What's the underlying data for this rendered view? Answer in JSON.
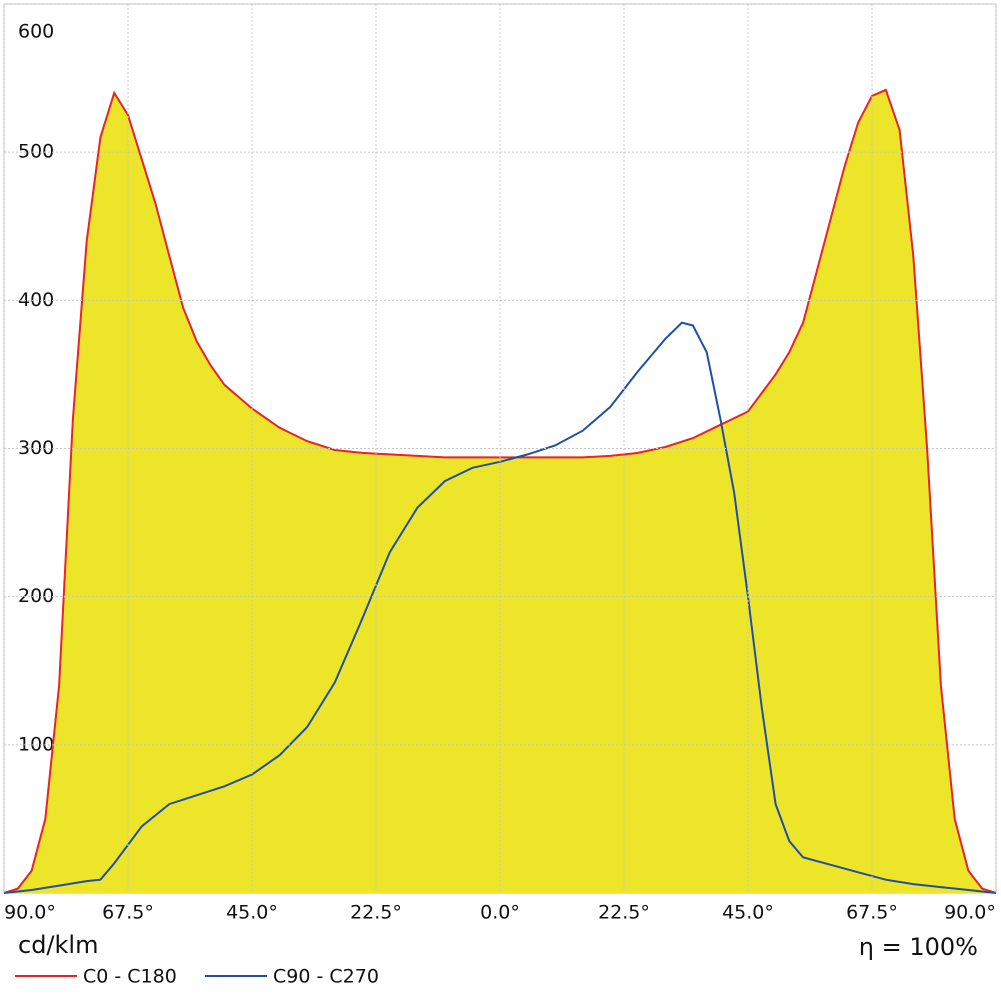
{
  "chart_data": {
    "type": "line",
    "y_unit": "cd/klm",
    "efficiency": "η = 100%",
    "xlim": [
      -90,
      90
    ],
    "ylim": [
      0,
      600
    ],
    "xticks": [
      {
        "value": -90,
        "label": "90.0°"
      },
      {
        "value": -67.5,
        "label": "67.5°"
      },
      {
        "value": -45,
        "label": "45.0°"
      },
      {
        "value": -22.5,
        "label": "22.5°"
      },
      {
        "value": 0,
        "label": "0.0°"
      },
      {
        "value": 22.5,
        "label": "22.5°"
      },
      {
        "value": 45,
        "label": "45.0°"
      },
      {
        "value": 67.5,
        "label": "67.5°"
      },
      {
        "value": 90,
        "label": "90.0°"
      }
    ],
    "yticks": [
      100,
      200,
      300,
      400,
      500,
      600
    ],
    "grid": true,
    "series": [
      {
        "name": "C0 - C180",
        "color": "#e8232a",
        "fill": "#ece52a",
        "x": [
          -90,
          -87.5,
          -85,
          -82.5,
          -80,
          -77.5,
          -75,
          -72.5,
          -70,
          -67.5,
          -65,
          -62.5,
          -60,
          -57.5,
          -55,
          -52.5,
          -50,
          -45,
          -40,
          -35,
          -30,
          -25,
          -20,
          -15,
          -10,
          -5,
          0,
          5,
          10,
          15,
          20,
          25,
          30,
          35,
          40,
          45,
          50,
          52.5,
          55,
          57.5,
          60,
          62.5,
          65,
          67.5,
          70,
          72.5,
          75,
          77.5,
          80,
          82.5,
          85,
          87.5,
          90
        ],
        "values": [
          0,
          3,
          15,
          50,
          140,
          320,
          440,
          510,
          540,
          525,
          495,
          465,
          430,
          395,
          372,
          356,
          343,
          327,
          314,
          305,
          299,
          297,
          296,
          295,
          294,
          294,
          294,
          294,
          294,
          294,
          295,
          297,
          301,
          307,
          316,
          325,
          350,
          365,
          385,
          420,
          455,
          490,
          520,
          538,
          542,
          515,
          430,
          300,
          140,
          50,
          15,
          3,
          0
        ]
      },
      {
        "name": "C90 - C270",
        "color": "#1f4fa8",
        "x": [
          -90,
          -85,
          -80,
          -75,
          -72.5,
          -70,
          -65,
          -60,
          -55,
          -50,
          -45,
          -40,
          -35,
          -30,
          -25,
          -20,
          -15,
          -10,
          -5,
          0,
          5,
          10,
          15,
          20,
          25,
          30,
          33,
          35,
          37.5,
          40,
          42.5,
          45,
          47.5,
          50,
          52.5,
          55,
          60,
          65,
          70,
          75,
          80,
          85,
          90
        ],
        "values": [
          0,
          2,
          5,
          8,
          9,
          20,
          45,
          60,
          66,
          72,
          80,
          93,
          112,
          142,
          185,
          230,
          260,
          278,
          287,
          291,
          296,
          302,
          312,
          328,
          352,
          374,
          385,
          383,
          365,
          320,
          270,
          200,
          125,
          60,
          35,
          24,
          19,
          14,
          9,
          6,
          4,
          2,
          0
        ]
      }
    ]
  }
}
